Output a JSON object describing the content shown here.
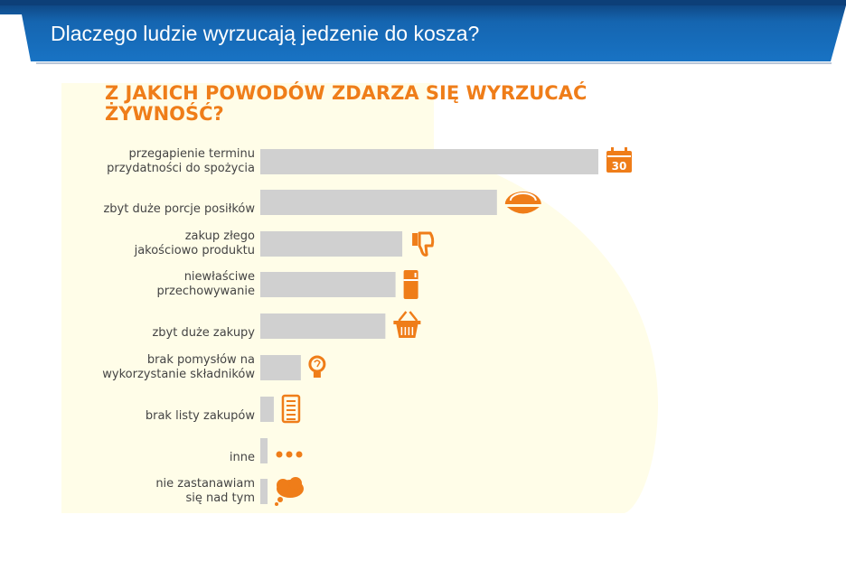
{
  "slide": {
    "title": "Dlaczego ludzie wyrzucają jedzenie do kosza?",
    "header_color": "#1565b0",
    "header_dark": "#0d3f78"
  },
  "chart_data": {
    "type": "bar",
    "orientation": "horizontal",
    "title": "Z JAKICH POWODÓW ZDARZA SIĘ WYRZUCAĆ ŻYWNOŚĆ?",
    "categories": [
      "przegapienie terminu\nprzydatności do spożycia",
      "zbyt duże porcje posiłków",
      "zakup złego\njakościowo produktu",
      "niewłaściwe\nprzechowywanie",
      "zbyt duże zakupy",
      "brak pomysłów na\nwykorzystanie składników",
      "brak listy zakupów",
      "inne",
      "nie zastanawiam\nsię nad tym"
    ],
    "values": [
      100,
      70,
      42,
      40,
      37,
      12,
      4,
      2,
      2
    ],
    "xlim": [
      0,
      100
    ],
    "bar_color": "#d0d0d0",
    "accent_color": "#ef7d19",
    "background_shape_color": "#fffde8",
    "icons": [
      "calendar-icon",
      "bowl-icon",
      "thumbs-down-icon",
      "fridge-icon",
      "basket-icon",
      "lightbulb-icon",
      "list-icon",
      "dots-icon",
      "thought-bubble-icon"
    ],
    "calendar_icon_text": "30"
  }
}
